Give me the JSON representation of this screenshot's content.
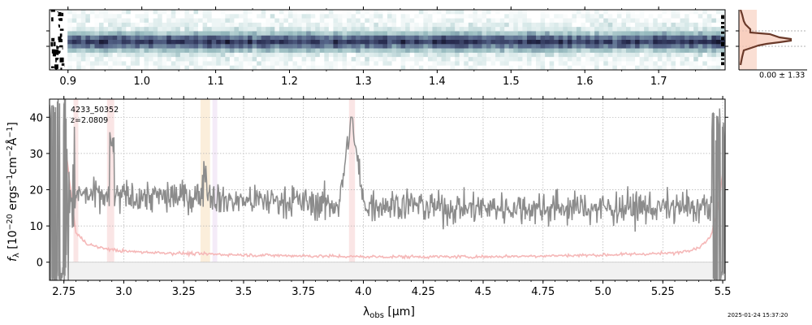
{
  "chart_data": [
    {
      "panel": "2d-spectrum",
      "type": "heatmap",
      "x_range_um": [
        0.875,
        1.79
      ],
      "x_ticks": [
        "0.9",
        "1.0",
        "1.1",
        "1.2",
        "1.3",
        "1.4",
        "1.5",
        "1.6",
        "1.7"
      ],
      "x_tick_values": [
        0.9,
        1.0,
        1.1,
        1.2,
        1.3,
        1.4,
        1.5,
        1.6,
        1.7
      ],
      "colormap": "bone-teal",
      "trace_color": "#2e3358"
    },
    {
      "panel": "spatial-profile",
      "type": "line",
      "annotation": "0.00 ± 1.33",
      "profile_color": "#6b3a2a",
      "fill_color": "#f7c9b8"
    },
    {
      "panel": "1d-spectrum",
      "type": "line",
      "title": "",
      "label_id": "4233_50352",
      "label_z": "z=2.0809",
      "xlabel_main": "λ",
      "xlabel_sub": "obs",
      "xlabel_unit": " [μm]",
      "ylabel": "f_λ [10⁻²⁰ ergs⁻¹cm⁻²Å⁻¹]",
      "ylabel_prefix": "f",
      "ylabel_sub": "λ",
      "ylabel_rest": " [10",
      "ylabel_exp1": "−20",
      "ylabel_mid1": " ergs",
      "ylabel_exp2": "−1",
      "ylabel_mid2": "cm",
      "ylabel_exp3": "−2",
      "ylabel_mid3": "Å",
      "ylabel_exp4": "−1",
      "ylabel_end": "]",
      "xlim": [
        2.69,
        5.51
      ],
      "ylim": [
        -5,
        45
      ],
      "x_ticks": [
        "2.75",
        "3.0",
        "3.25",
        "3.5",
        "3.75",
        "4.0",
        "4.25",
        "4.5",
        "4.75",
        "5.0",
        "5.25",
        "5.5"
      ],
      "x_tick_values": [
        2.75,
        3.0,
        3.25,
        3.5,
        3.75,
        4.0,
        4.25,
        4.5,
        4.75,
        5.0,
        5.25,
        5.5
      ],
      "y_ticks": [
        "0",
        "10",
        "20",
        "30",
        "40"
      ],
      "y_tick_values": [
        0,
        10,
        20,
        30,
        40
      ],
      "grid": true,
      "series": [
        {
          "role": "flux",
          "color": "#8c8c8c",
          "x": [
            2.78,
            2.8,
            2.9,
            3.0,
            3.1,
            3.2,
            3.3,
            3.34,
            3.4,
            3.5,
            3.6,
            3.7,
            3.8,
            3.9,
            3.95,
            4.0,
            4.1,
            4.2,
            4.3,
            4.4,
            4.5,
            4.6,
            4.7,
            4.8,
            4.9,
            5.0,
            5.1,
            5.2,
            5.3,
            5.4,
            5.45
          ],
          "y": [
            19,
            19,
            18,
            18,
            18,
            18,
            18,
            20,
            17,
            17,
            17,
            17,
            16,
            16,
            40,
            16,
            16,
            16,
            15,
            15,
            15,
            15,
            15,
            15,
            15,
            15,
            15,
            15,
            15,
            15,
            15
          ]
        },
        {
          "role": "error",
          "color": "#f5b8b8",
          "x": [
            2.76,
            2.8,
            2.85,
            2.9,
            3.0,
            3.2,
            3.5,
            4.0,
            4.5,
            5.0,
            5.3,
            5.4,
            5.45,
            5.48,
            5.5
          ],
          "y": [
            30,
            8,
            5,
            4,
            3,
            2.5,
            2,
            1.5,
            1.5,
            2,
            2.5,
            4,
            7,
            15,
            25
          ]
        }
      ],
      "emission_lines_um": [
        2.8,
        2.94,
        3.34,
        3.38,
        3.95
      ],
      "band_colors": [
        "#f4c6c6",
        "#f7d9b0",
        "#e7d3f0"
      ]
    }
  ],
  "timestamp": "2025-01-24 15:37:20"
}
